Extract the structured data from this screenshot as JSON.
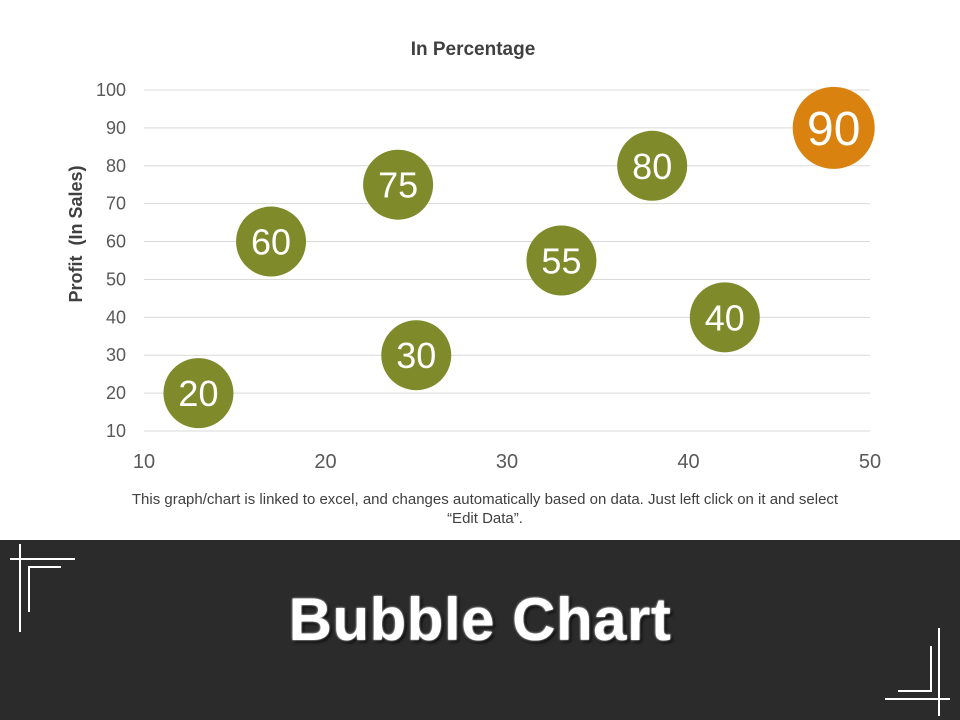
{
  "chart_data": {
    "type": "scatter",
    "title": "In Percentage",
    "xlabel": "",
    "ylabel": "Profit  (In Sales)",
    "xlim": [
      10,
      50
    ],
    "ylim": [
      10,
      100
    ],
    "xticks": [
      10,
      20,
      30,
      40,
      50
    ],
    "yticks": [
      10,
      20,
      30,
      40,
      50,
      60,
      70,
      80,
      90,
      100
    ],
    "grid": true,
    "legend": "none",
    "points": [
      {
        "x": 13,
        "y": 20,
        "label": "20",
        "color": "#7f8b2a"
      },
      {
        "x": 17,
        "y": 60,
        "label": "60",
        "color": "#7f8b2a"
      },
      {
        "x": 24,
        "y": 75,
        "label": "75",
        "color": "#7f8b2a"
      },
      {
        "x": 25,
        "y": 30,
        "label": "30",
        "color": "#7f8b2a"
      },
      {
        "x": 33,
        "y": 55,
        "label": "55",
        "color": "#7f8b2a"
      },
      {
        "x": 38,
        "y": 80,
        "label": "80",
        "color": "#7f8b2a"
      },
      {
        "x": 42,
        "y": 40,
        "label": "40",
        "color": "#7f8b2a"
      },
      {
        "x": 48,
        "y": 90,
        "label": "90",
        "color": "#d9820f"
      }
    ]
  },
  "footnote": "This graph/chart is linked to excel, and changes automatically based on data. Just left click on it and select “Edit Data”.",
  "banner": {
    "title": "Bubble Chart"
  },
  "colors": {
    "bubble_primary": "#7f8b2a",
    "bubble_highlight": "#d9820f",
    "banner_background": "#2b2b2b",
    "gridline": "#d9d9d9",
    "axis_text": "#595959"
  }
}
